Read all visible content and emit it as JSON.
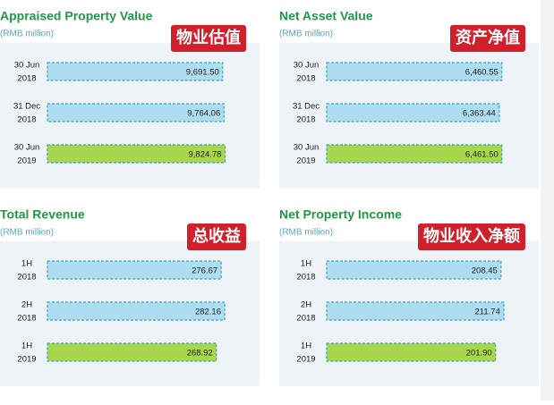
{
  "chart_data": [
    {
      "type": "bar",
      "title": "Appraised Property Value",
      "subtitle": "(RMB million)",
      "annotation": "物业估值",
      "categories": [
        [
          "30 Jun",
          "2018"
        ],
        [
          "31 Dec",
          "2018"
        ],
        [
          "30 Jun",
          "2019"
        ]
      ],
      "values": [
        9691.5,
        9764.06,
        9824.78
      ],
      "value_labels": [
        "9,691.50",
        "9,764.06",
        "9,824.78"
      ],
      "colors": [
        "#aedcf0",
        "#aedcf0",
        "#a8d64c"
      ],
      "xlim": [
        0,
        9900
      ]
    },
    {
      "type": "bar",
      "title": "Net Asset Value",
      "subtitle": "(RMB million)",
      "annotation": "资产净值",
      "categories": [
        [
          "30 Jun",
          "2018"
        ],
        [
          "31 Dec",
          "2018"
        ],
        [
          "30 Jun",
          "2019"
        ]
      ],
      "values": [
        6460.55,
        6363.44,
        6461.5
      ],
      "value_labels": [
        "6,460.55",
        "6,363.44",
        "6,461.50"
      ],
      "colors": [
        "#aedcf0",
        "#aedcf0",
        "#a8d64c"
      ],
      "xlim": [
        0,
        6600
      ]
    },
    {
      "type": "bar",
      "title": "Total Revenue",
      "subtitle": "(RMB million)",
      "annotation": "总收益",
      "categories": [
        [
          "1H",
          "2018"
        ],
        [
          "2H",
          "2018"
        ],
        [
          "1H",
          "2019"
        ]
      ],
      "values": [
        276.67,
        282.16,
        268.92
      ],
      "colors": [
        "#aedcf0",
        "#aedcf0",
        "#a8d64c"
      ],
      "xlim": [
        0,
        285
      ]
    },
    {
      "type": "bar",
      "title": "Net Property Income",
      "subtitle": "(RMB million)",
      "annotation": "物业收入净额",
      "categories": [
        [
          "1H",
          "2018"
        ],
        [
          "2H",
          "2018"
        ],
        [
          "1H",
          "2019"
        ]
      ],
      "values": [
        208.45,
        211.74,
        201.9
      ],
      "value_labels": [
        "208.45",
        "211.74",
        "201.90"
      ],
      "colors": [
        "#aedcf0",
        "#aedcf0",
        "#a8d64c"
      ],
      "xlim": [
        0,
        214
      ]
    }
  ]
}
